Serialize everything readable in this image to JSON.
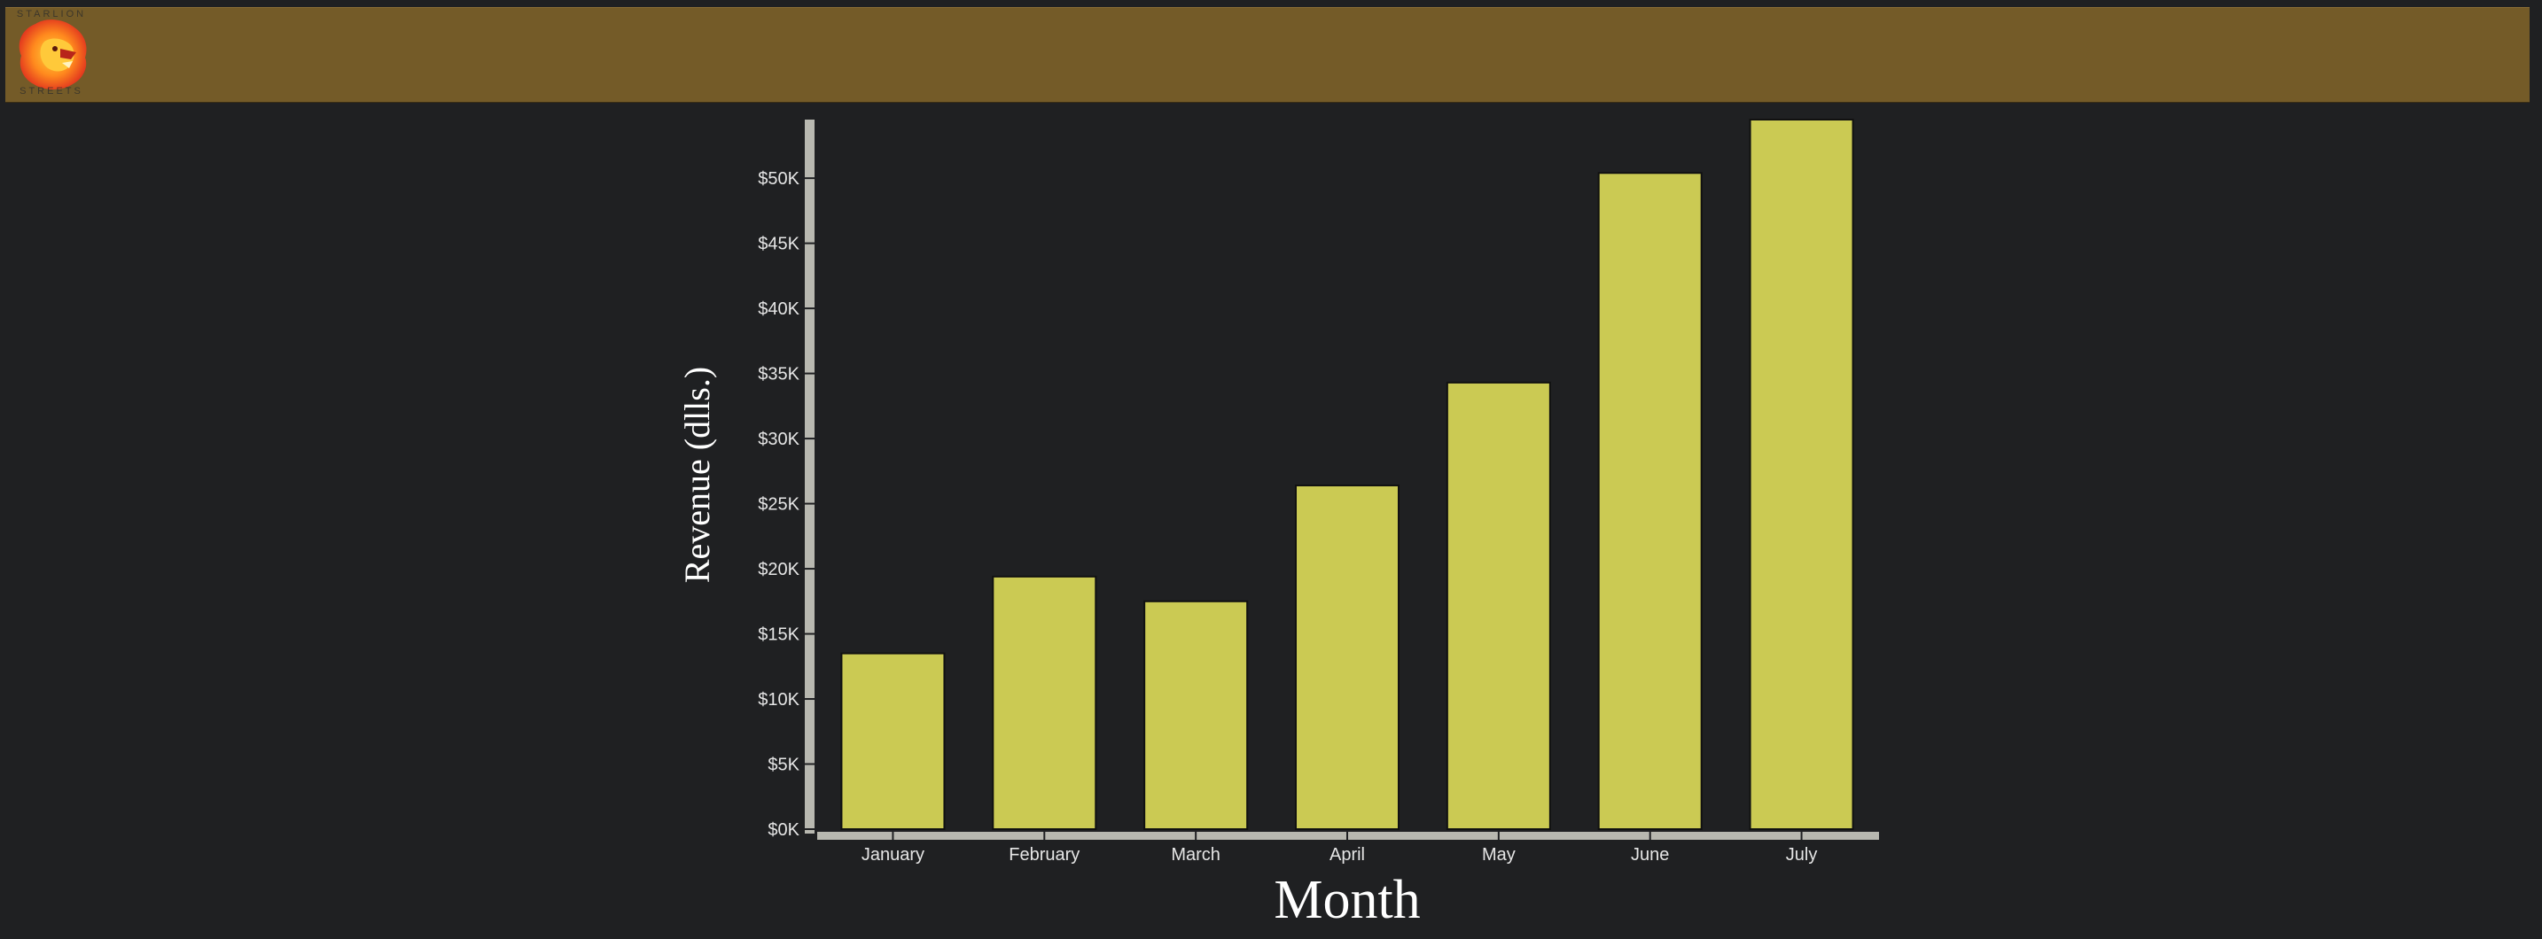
{
  "header": {
    "background": "#745b28",
    "logo": {
      "icon": "lion-head-icon",
      "top_text": "STARLION",
      "bottom_text": "STREETS"
    }
  },
  "chart_data": {
    "type": "bar",
    "categories": [
      "January",
      "February",
      "March",
      "April",
      "May",
      "June",
      "July"
    ],
    "values": [
      13500,
      19400,
      17500,
      26400,
      34300,
      50400,
      54500
    ],
    "title": "",
    "xlabel": "Month",
    "ylabel": "Revenue (dlls.)",
    "ylim": [
      0,
      54500
    ],
    "yticks": [
      0,
      5000,
      10000,
      15000,
      20000,
      25000,
      30000,
      35000,
      40000,
      45000,
      50000
    ],
    "ytick_labels": [
      "$0K",
      "$5K",
      "$10K",
      "$15K",
      "$20K",
      "$25K",
      "$30K",
      "$35K",
      "$40K",
      "$45K",
      "$50K"
    ],
    "grid": false,
    "bar_color": "#cbca53",
    "bar_stroke": "#111111",
    "axis_color": "#b8b8b0"
  }
}
